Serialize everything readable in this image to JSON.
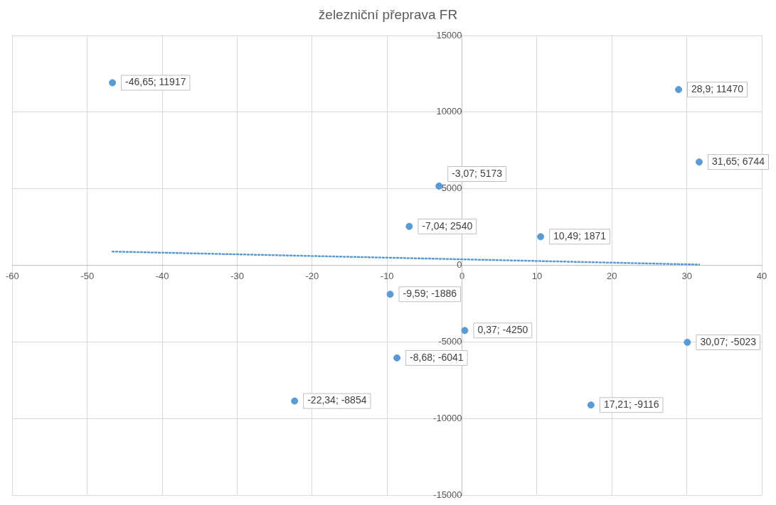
{
  "chart_data": {
    "type": "scatter",
    "title": "železniční přeprava FR",
    "xlim": [
      -60,
      40
    ],
    "xticks": [
      -60,
      -50,
      -40,
      -30,
      -20,
      -10,
      0,
      10,
      20,
      30,
      40
    ],
    "ylim": [
      -15000,
      15000
    ],
    "yticks": [
      -15000,
      -10000,
      -5000,
      0,
      5000,
      10000,
      15000
    ],
    "grid": true,
    "legend": false,
    "series": [
      {
        "color": "#5b9bd5",
        "marker": "circle",
        "x": [
          -46.65,
          28.9,
          31.65,
          -3.07,
          -7.04,
          10.49,
          -9.59,
          0.37,
          30.07,
          -8.68,
          -22.34,
          17.21
        ],
        "values": [
          11917,
          11470,
          6744,
          5173,
          2540,
          1871,
          -1886,
          -4250,
          -5023,
          -6041,
          -8854,
          -9116
        ],
        "value_labels": [
          "-46,65; 11917",
          "28,9; 11470",
          "31,65; 6744",
          "-3,07; 5173",
          "-7,04; 2540",
          "10,49; 1871",
          "-9,59; -1886",
          "0,37; -4250",
          "30,07; -5023",
          "-8,68; -6041",
          "-22,34; -8854",
          "17,21; -9116"
        ]
      },
      {
        "type": "line",
        "color": "#5b9bd5",
        "marker": "none",
        "line_style": "dotted",
        "x": [
          -46.65,
          31.65
        ],
        "values": [
          900,
          50
        ]
      }
    ]
  }
}
